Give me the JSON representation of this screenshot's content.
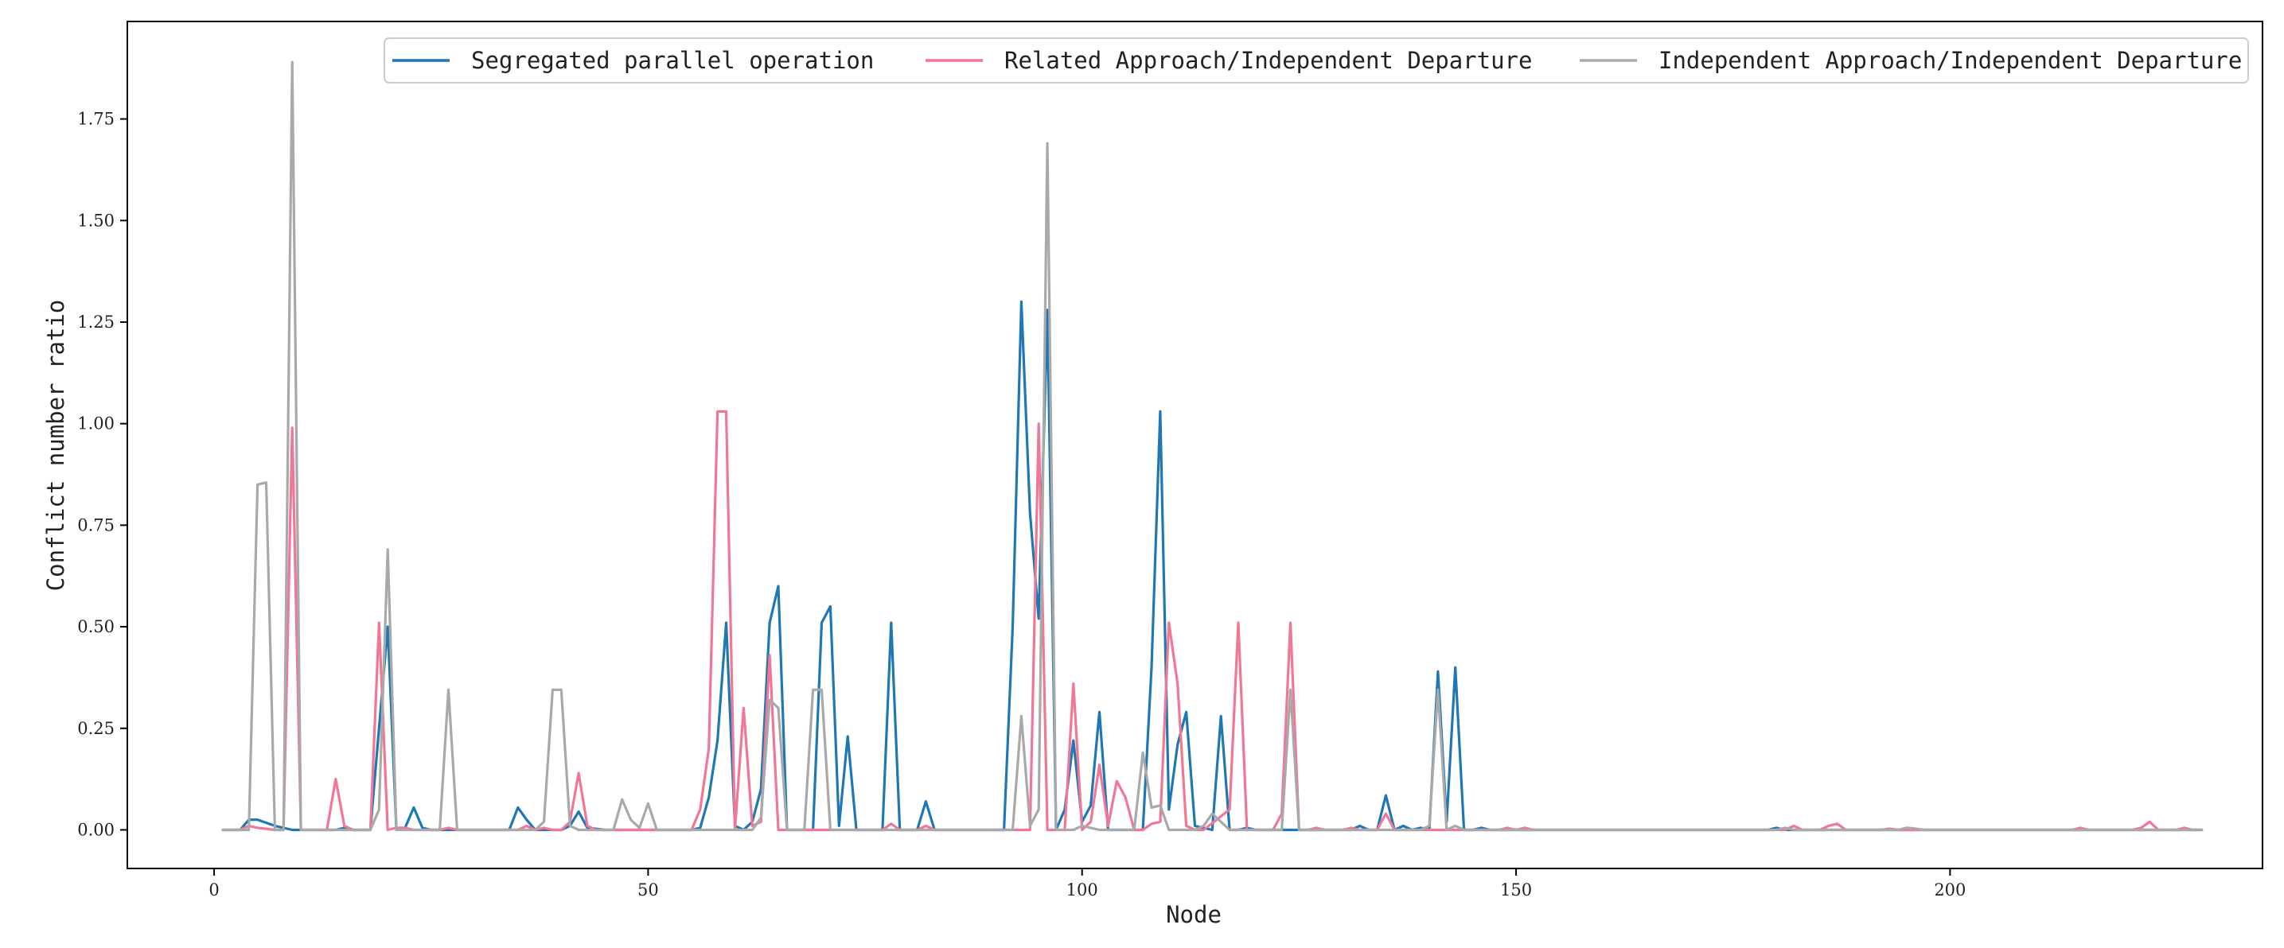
{
  "chart_data": {
    "type": "line",
    "title": "",
    "xlabel": "Node",
    "ylabel": "Conflict number ratio",
    "xlim": [
      -10,
      236
    ],
    "ylim": [
      -0.095,
      1.99
    ],
    "xticks": [
      0,
      50,
      100,
      150,
      200
    ],
    "yticks": [
      0.0,
      0.25,
      0.5,
      0.75,
      1.0,
      1.25,
      1.5,
      1.75
    ],
    "grid": false,
    "legend": "top-right",
    "series": [
      {
        "name": "Segregated parallel operation",
        "color": "#1f77b4",
        "points": [
          [
            1,
            0
          ],
          [
            3,
            0
          ],
          [
            4,
            0.025
          ],
          [
            5,
            0.025
          ],
          [
            7,
            0.01
          ],
          [
            9,
            0
          ],
          [
            10,
            0
          ],
          [
            14,
            0
          ],
          [
            15,
            0.005
          ],
          [
            16,
            0
          ],
          [
            18,
            0
          ],
          [
            20,
            0.5
          ],
          [
            21,
            0
          ],
          [
            22,
            0.005
          ],
          [
            23,
            0.055
          ],
          [
            24,
            0.005
          ],
          [
            25,
            0
          ],
          [
            34,
            0
          ],
          [
            35,
            0.055
          ],
          [
            36,
            0.025
          ],
          [
            37,
            0
          ],
          [
            40,
            0
          ],
          [
            41,
            0.01
          ],
          [
            42,
            0.045
          ],
          [
            43,
            0.005
          ],
          [
            45,
            0
          ],
          [
            55,
            0
          ],
          [
            56,
            0.005
          ],
          [
            57,
            0.08
          ],
          [
            58,
            0.22
          ],
          [
            59,
            0.51
          ],
          [
            60,
            0.01
          ],
          [
            61,
            0
          ],
          [
            62,
            0.02
          ],
          [
            63,
            0.1
          ],
          [
            64,
            0.51
          ],
          [
            65,
            0.6
          ],
          [
            66,
            0
          ],
          [
            69,
            0
          ],
          [
            70,
            0.51
          ],
          [
            71,
            0.55
          ],
          [
            72,
            0.01
          ],
          [
            73,
            0.23
          ],
          [
            74,
            0
          ],
          [
            77,
            0
          ],
          [
            78,
            0.51
          ],
          [
            79,
            0
          ],
          [
            81,
            0
          ],
          [
            82,
            0.07
          ],
          [
            83,
            0
          ],
          [
            91,
            0
          ],
          [
            92,
            0.5
          ],
          [
            93,
            1.3
          ],
          [
            94,
            0.78
          ],
          [
            95,
            0.52
          ],
          [
            96,
            1.28
          ],
          [
            97,
            0
          ],
          [
            98,
            0.05
          ],
          [
            99,
            0.22
          ],
          [
            100,
            0.02
          ],
          [
            101,
            0.06
          ],
          [
            102,
            0.29
          ],
          [
            103,
            0
          ],
          [
            107,
            0
          ],
          [
            108,
            0.4
          ],
          [
            109,
            1.03
          ],
          [
            110,
            0.05
          ],
          [
            111,
            0.21
          ],
          [
            112,
            0.29
          ],
          [
            113,
            0.01
          ],
          [
            115,
            0
          ],
          [
            116,
            0.28
          ],
          [
            117,
            0
          ],
          [
            118,
            0
          ],
          [
            119,
            0.005
          ],
          [
            120,
            0
          ],
          [
            131,
            0
          ],
          [
            132,
            0.01
          ],
          [
            133,
            0
          ],
          [
            134,
            0
          ],
          [
            135,
            0.085
          ],
          [
            136,
            0
          ],
          [
            137,
            0.01
          ],
          [
            138,
            0
          ],
          [
            139,
            0.005
          ],
          [
            140,
            0
          ],
          [
            141,
            0.39
          ],
          [
            142,
            0.02
          ],
          [
            143,
            0.4
          ],
          [
            144,
            0
          ],
          [
            145,
            0
          ],
          [
            146,
            0.005
          ],
          [
            147,
            0
          ],
          [
            179,
            0
          ],
          [
            180,
            0.005
          ],
          [
            181,
            0
          ],
          [
            200,
            0
          ],
          [
            229,
            0
          ]
        ]
      },
      {
        "name": "Related Approach/Independent Departure",
        "color": "#f07896",
        "points": [
          [
            1,
            0
          ],
          [
            3,
            0
          ],
          [
            4,
            0.01
          ],
          [
            5,
            0.005
          ],
          [
            7,
            0
          ],
          [
            8,
            0
          ],
          [
            9,
            0.99
          ],
          [
            10,
            0
          ],
          [
            13,
            0
          ],
          [
            14,
            0.125
          ],
          [
            15,
            0.01
          ],
          [
            16,
            0
          ],
          [
            18,
            0
          ],
          [
            19,
            0.51
          ],
          [
            20,
            0
          ],
          [
            21,
            0.005
          ],
          [
            22,
            0.005
          ],
          [
            23,
            0
          ],
          [
            26,
            0
          ],
          [
            27,
            0.005
          ],
          [
            28,
            0
          ],
          [
            35,
            0
          ],
          [
            36,
            0.01
          ],
          [
            37,
            0
          ],
          [
            38,
            0.005
          ],
          [
            39,
            0
          ],
          [
            40,
            0
          ],
          [
            41,
            0.02
          ],
          [
            42,
            0.14
          ],
          [
            43,
            0.01
          ],
          [
            44,
            0
          ],
          [
            55,
            0
          ],
          [
            56,
            0.05
          ],
          [
            57,
            0.2
          ],
          [
            58,
            1.03
          ],
          [
            59,
            1.03
          ],
          [
            60,
            0
          ],
          [
            61,
            0.3
          ],
          [
            62,
            0.01
          ],
          [
            63,
            0.02
          ],
          [
            64,
            0.43
          ],
          [
            65,
            0
          ],
          [
            67,
            0
          ],
          [
            68,
            0
          ],
          [
            77,
            0
          ],
          [
            78,
            0.015
          ],
          [
            79,
            0
          ],
          [
            81,
            0
          ],
          [
            82,
            0.01
          ],
          [
            83,
            0
          ],
          [
            93,
            0
          ],
          [
            94,
            0
          ],
          [
            95,
            1.0
          ],
          [
            96,
            0
          ],
          [
            98,
            0
          ],
          [
            99,
            0.36
          ],
          [
            100,
            0
          ],
          [
            101,
            0.02
          ],
          [
            102,
            0.16
          ],
          [
            103,
            0.01
          ],
          [
            104,
            0.12
          ],
          [
            105,
            0.08
          ],
          [
            106,
            0
          ],
          [
            107,
            0
          ],
          [
            108,
            0.015
          ],
          [
            109,
            0.02
          ],
          [
            110,
            0.51
          ],
          [
            111,
            0.36
          ],
          [
            112,
            0.01
          ],
          [
            113,
            0
          ],
          [
            114,
            0
          ],
          [
            117,
            0.05
          ],
          [
            118,
            0.51
          ],
          [
            119,
            0
          ],
          [
            122,
            0
          ],
          [
            123,
            0.04
          ],
          [
            124,
            0.51
          ],
          [
            125,
            0
          ],
          [
            126,
            0
          ],
          [
            127,
            0.005
          ],
          [
            128,
            0
          ],
          [
            130,
            0
          ],
          [
            131,
            0.005
          ],
          [
            132,
            0
          ],
          [
            134,
            0
          ],
          [
            135,
            0.04
          ],
          [
            136,
            0
          ],
          [
            148,
            0
          ],
          [
            149,
            0.005
          ],
          [
            150,
            0
          ],
          [
            151,
            0.005
          ],
          [
            152,
            0
          ],
          [
            181,
            0
          ],
          [
            182,
            0.01
          ],
          [
            183,
            0
          ],
          [
            185,
            0
          ],
          [
            186,
            0.01
          ],
          [
            187,
            0.015
          ],
          [
            188,
            0
          ],
          [
            192,
            0
          ],
          [
            193,
            0.003
          ],
          [
            194,
            0
          ],
          [
            214,
            0
          ],
          [
            215,
            0.005
          ],
          [
            216,
            0
          ],
          [
            221,
            0
          ],
          [
            222,
            0.005
          ],
          [
            223,
            0.02
          ],
          [
            224,
            0
          ],
          [
            226,
            0
          ],
          [
            227,
            0.005
          ],
          [
            228,
            0
          ],
          [
            229,
            0
          ]
        ]
      },
      {
        "name": "Independent Approach/Independent Departure",
        "color": "#a9a9a9",
        "points": [
          [
            1,
            0
          ],
          [
            4,
            0
          ],
          [
            5,
            0.85
          ],
          [
            6,
            0.855
          ],
          [
            7,
            0
          ],
          [
            8,
            0
          ],
          [
            9,
            1.89
          ],
          [
            10,
            0
          ],
          [
            18,
            0
          ],
          [
            19,
            0.05
          ],
          [
            20,
            0.69
          ],
          [
            21,
            0
          ],
          [
            26,
            0
          ],
          [
            27,
            0.345
          ],
          [
            28,
            0
          ],
          [
            37,
            0
          ],
          [
            38,
            0.02
          ],
          [
            39,
            0.345
          ],
          [
            40,
            0.345
          ],
          [
            41,
            0.01
          ],
          [
            42,
            0
          ],
          [
            46,
            0
          ],
          [
            47,
            0.075
          ],
          [
            48,
            0.025
          ],
          [
            49,
            0.005
          ],
          [
            50,
            0.065
          ],
          [
            51,
            0
          ],
          [
            62,
            0
          ],
          [
            63,
            0.03
          ],
          [
            64,
            0.32
          ],
          [
            65,
            0.3
          ],
          [
            66,
            0
          ],
          [
            68,
            0
          ],
          [
            69,
            0.345
          ],
          [
            70,
            0.345
          ],
          [
            71,
            0
          ],
          [
            92,
            0
          ],
          [
            93,
            0.28
          ],
          [
            94,
            0.01
          ],
          [
            95,
            0.05
          ],
          [
            96,
            1.69
          ],
          [
            97,
            0
          ],
          [
            99,
            0
          ],
          [
            100,
            0.01
          ],
          [
            101,
            0.005
          ],
          [
            102,
            0
          ],
          [
            106,
            0
          ],
          [
            107,
            0.19
          ],
          [
            108,
            0.055
          ],
          [
            109,
            0.06
          ],
          [
            110,
            0
          ],
          [
            113,
            0
          ],
          [
            114,
            0.01
          ],
          [
            115,
            0.04
          ],
          [
            116,
            0.02
          ],
          [
            117,
            0
          ],
          [
            123,
            0
          ],
          [
            124,
            0.345
          ],
          [
            125,
            0
          ],
          [
            139,
            0
          ],
          [
            140,
            0.01
          ],
          [
            141,
            0.345
          ],
          [
            142,
            0
          ],
          [
            143,
            0.01
          ],
          [
            144,
            0
          ],
          [
            180,
            0
          ],
          [
            181,
            0.005
          ],
          [
            182,
            0
          ],
          [
            194,
            0
          ],
          [
            195,
            0.005
          ],
          [
            196,
            0.003
          ],
          [
            197,
            0
          ],
          [
            229,
            0
          ]
        ]
      }
    ]
  }
}
